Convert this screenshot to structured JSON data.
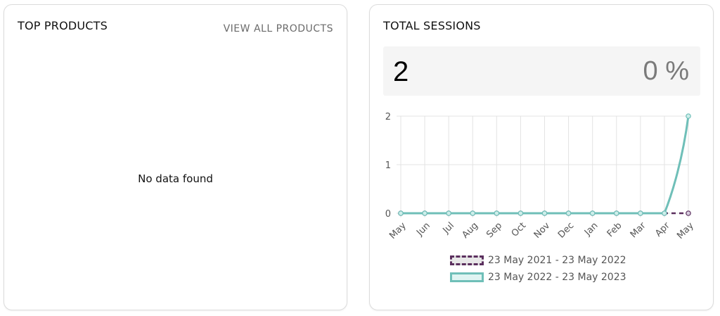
{
  "top_products": {
    "title": "TOP PRODUCTS",
    "view_all_label": "VIEW ALL PRODUCTS",
    "empty_message": "No data found"
  },
  "total_sessions": {
    "title": "TOTAL SESSIONS",
    "value": "2",
    "change": "0 %",
    "legend": [
      {
        "label": "23 May 2021 - 23 May 2022",
        "color": "#5b2f5e",
        "style": "dashed"
      },
      {
        "label": "23 May 2022 - 23 May 2023",
        "color": "#6fbfb8",
        "style": "solid"
      }
    ]
  },
  "chart_data": {
    "type": "line",
    "title": "Total Sessions",
    "categories": [
      "May",
      "Jun",
      "Jul",
      "Aug",
      "Sep",
      "Oct",
      "Nov",
      "Dec",
      "Jan",
      "Feb",
      "Mar",
      "Apr",
      "May"
    ],
    "series": [
      {
        "name": "23 May 2021 - 23 May 2022",
        "color": "#5b2f5e",
        "line": "dashed",
        "values": [
          0,
          0,
          0,
          0,
          0,
          0,
          0,
          0,
          0,
          0,
          0,
          0,
          0
        ]
      },
      {
        "name": "23 May 2022 - 23 May 2023",
        "color": "#6fbfb8",
        "line": "solid",
        "values": [
          0,
          0,
          0,
          0,
          0,
          0,
          0,
          0,
          0,
          0,
          0,
          0,
          2
        ]
      }
    ],
    "yticks": [
      0,
      1,
      2
    ],
    "ylim": [
      0,
      2
    ],
    "xlabel": "",
    "ylabel": "",
    "grid": true,
    "legend_position": "bottom"
  }
}
